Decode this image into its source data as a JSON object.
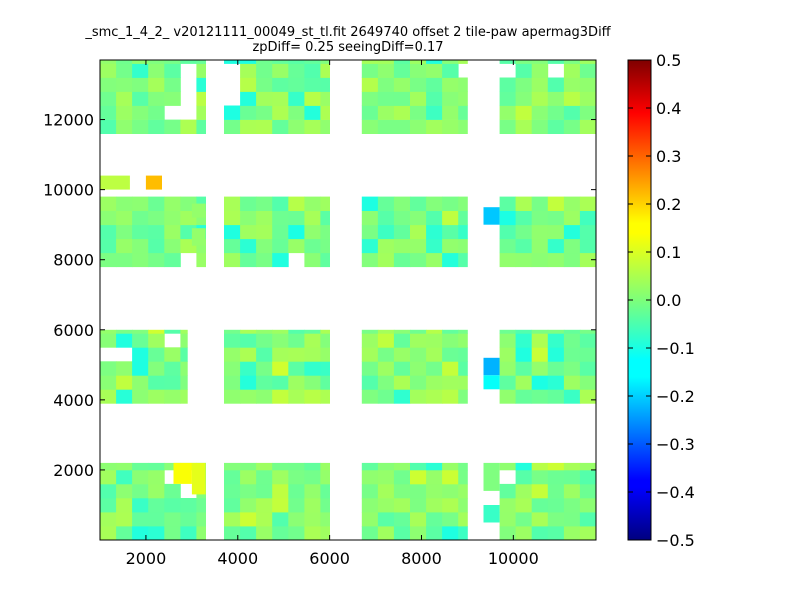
{
  "chart_data": {
    "type": "heatmap",
    "title": "_smc_1_4_2_ v20121111_00049_st_tl.fit 2649740 offset 2 tile-paw apermag3Diff",
    "subtitle": "zpDiff= 0.25 seeingDiff=0.17",
    "xlim": [
      1000,
      11800
    ],
    "ylim": [
      0,
      13700
    ],
    "xticks": [
      2000,
      4000,
      6000,
      8000,
      10000
    ],
    "yticks": [
      2000,
      4000,
      6000,
      8000,
      10000,
      12000
    ],
    "grid": false,
    "colormap": "jet",
    "colorbar": {
      "vmin": -0.5,
      "vmax": 0.5,
      "ticks": [
        "0.5",
        "0.4",
        "0.3",
        "0.2",
        "0.1",
        "0.0",
        "−0.1",
        "−0.2",
        "−0.3",
        "−0.4",
        "−0.5"
      ]
    },
    "notable_cells": [
      {
        "x": 2150,
        "y": 10150,
        "value": 0.2
      },
      {
        "x": 3200,
        "y": 1750,
        "value": 0.1
      },
      {
        "x": 9550,
        "y": 9250,
        "value": -0.18
      },
      {
        "x": 9550,
        "y": 4950,
        "value": -0.2
      },
      {
        "x": 9550,
        "y": 4550,
        "value": -0.12
      }
    ]
  }
}
